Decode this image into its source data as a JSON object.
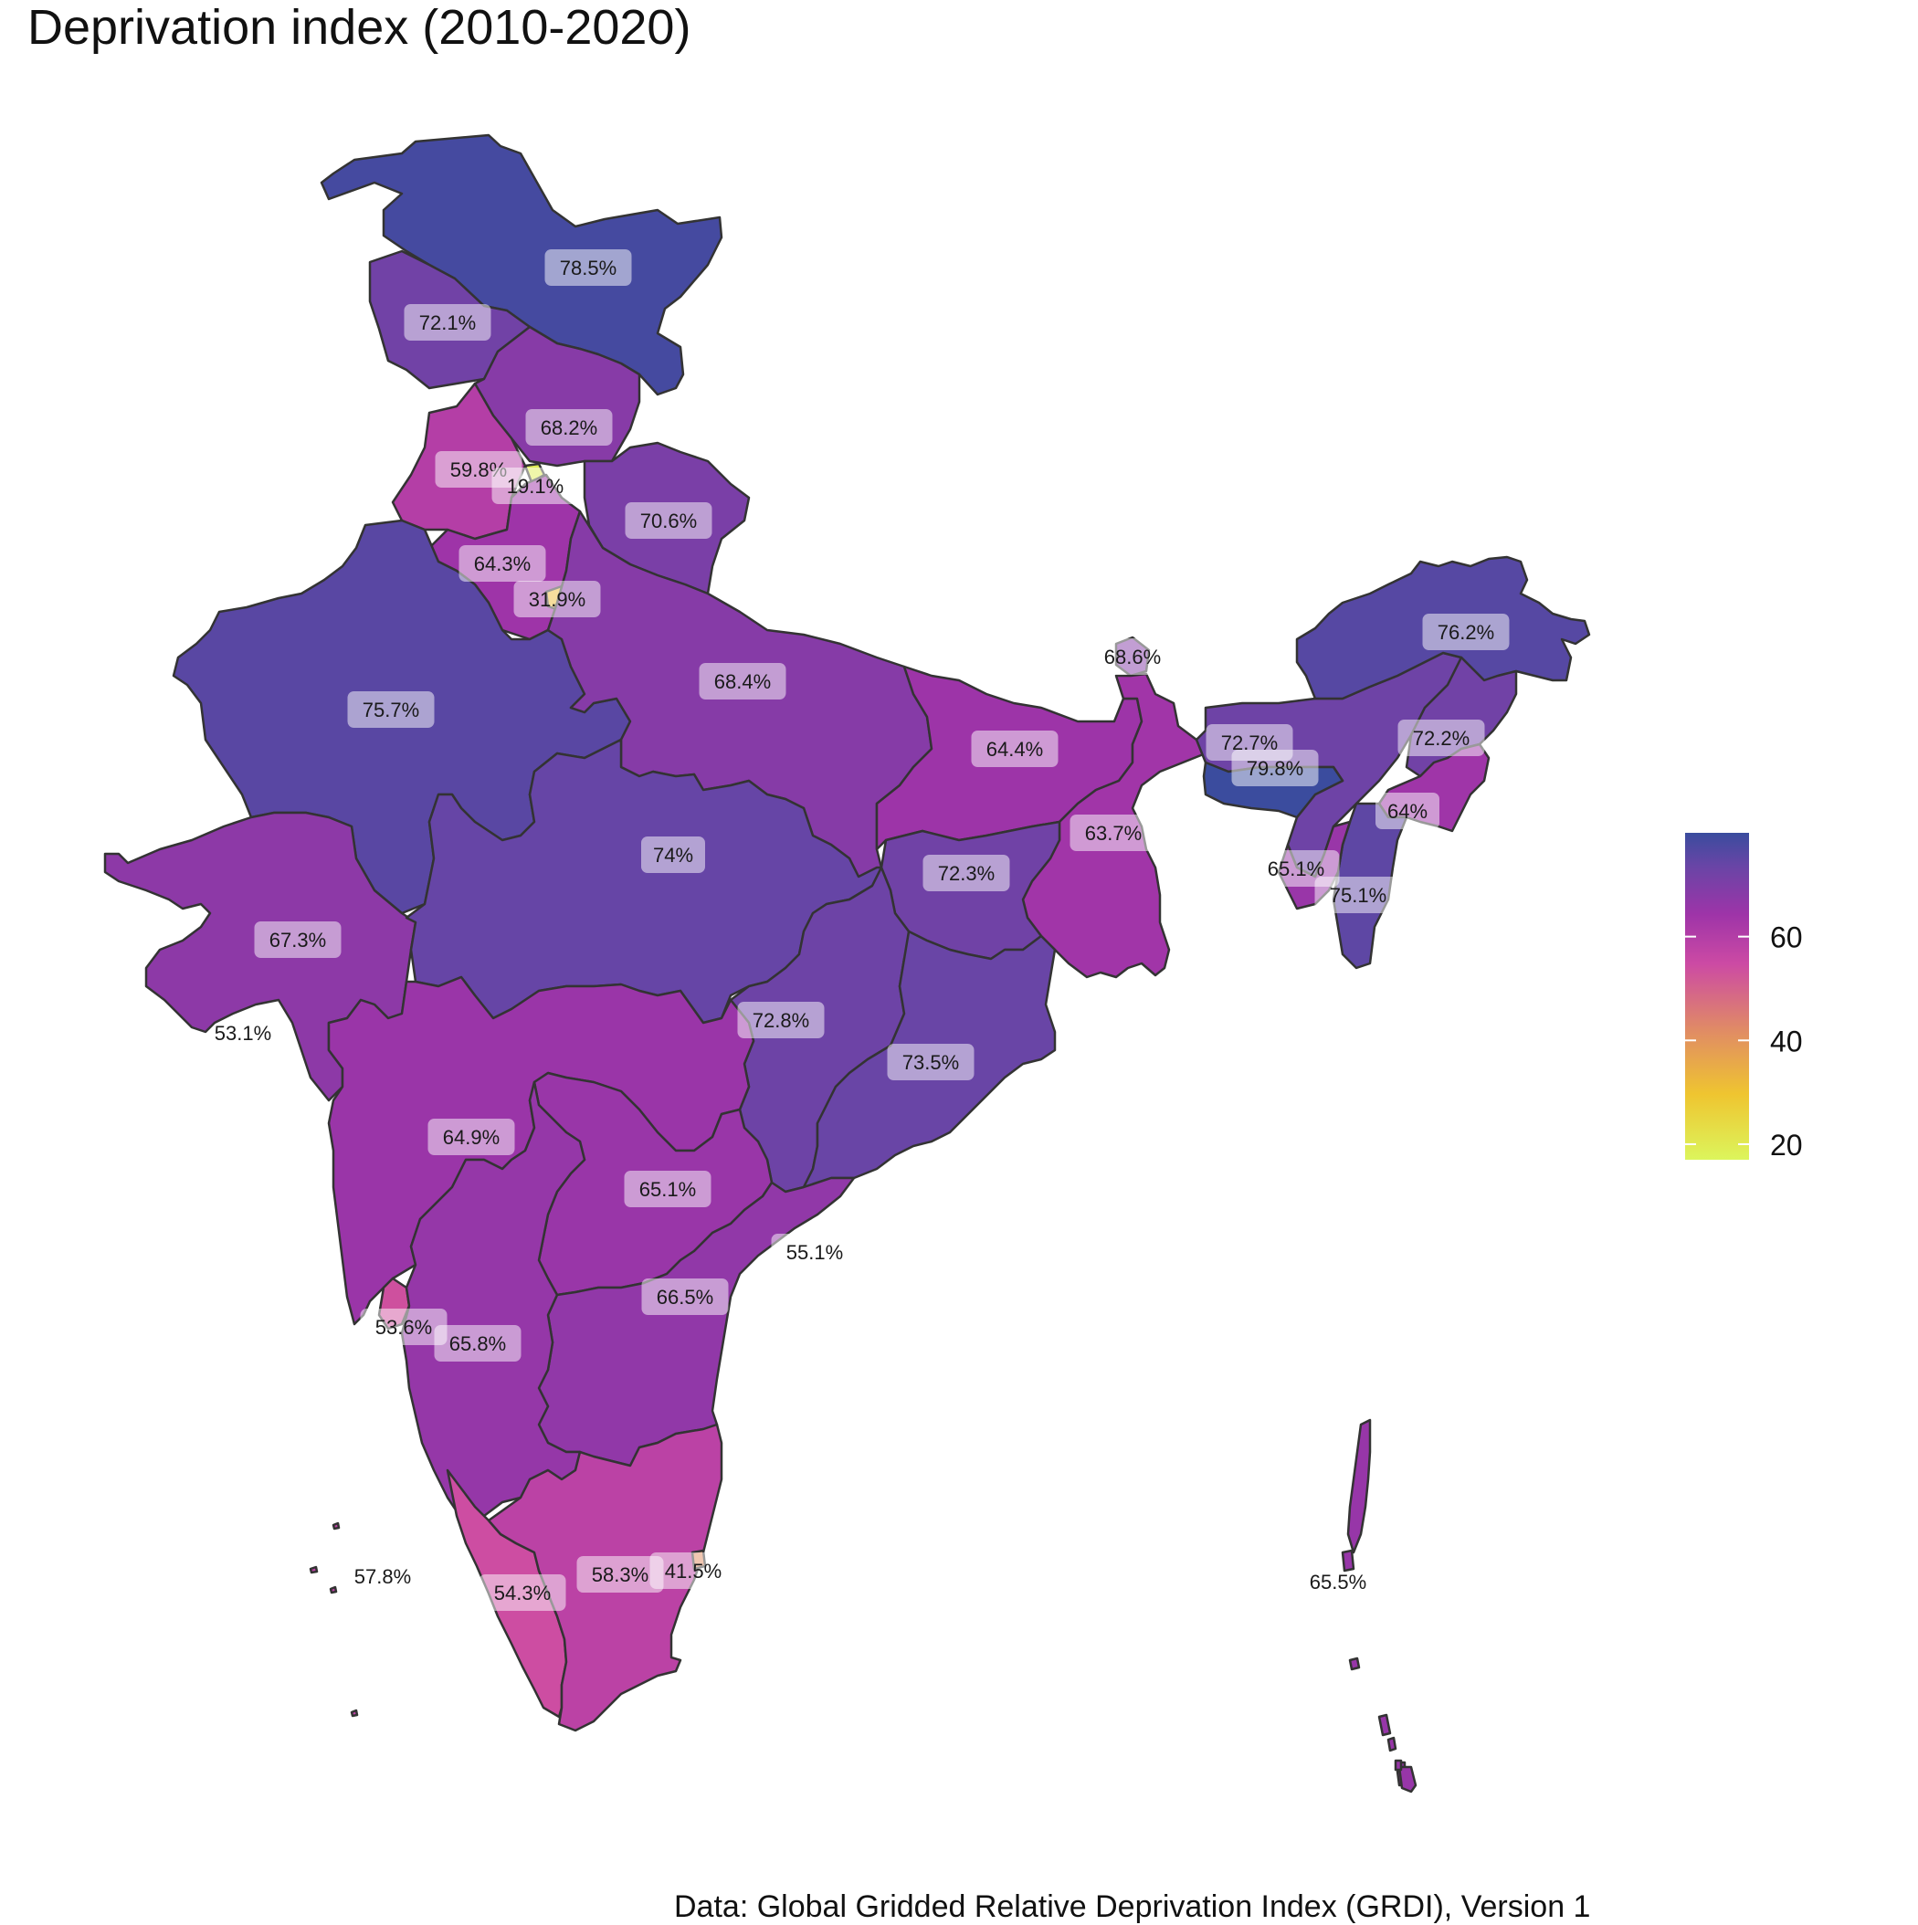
{
  "title": "Deprivation index (2010-2020)",
  "caption": "Data: Global Gridded Relative Deprivation Index (GRDI), Version 1",
  "legend": {
    "ticks": [
      "20",
      "40",
      "60"
    ],
    "tick_values": [
      20,
      40,
      60
    ],
    "range": [
      17,
      80
    ],
    "colors": [
      "#dcf55c",
      "#efc530",
      "#e08a66",
      "#cc4aa4",
      "#9e34a8",
      "#6845a6",
      "#3a4c9e"
    ]
  },
  "regions": [
    {
      "name": "Jammu & Kashmir",
      "label": "78.5%",
      "value": 78.5
    },
    {
      "name": "Himachal Pradesh",
      "label": "72.1%",
      "value": 72.1
    },
    {
      "name": "Uttarakhand",
      "label": "68.2%",
      "value": 68.2
    },
    {
      "name": "Punjab",
      "label": "59.8%",
      "value": 59.8
    },
    {
      "name": "Chandigarh",
      "label": "19.1%",
      "value": 19.1
    },
    {
      "name": "Uttarakhand-east",
      "label": "70.6%",
      "value": 70.6
    },
    {
      "name": "Haryana",
      "label": "64.3%",
      "value": 64.3
    },
    {
      "name": "Delhi",
      "label": "31.9%",
      "value": 31.9
    },
    {
      "name": "Rajasthan",
      "label": "75.7%",
      "value": 75.7
    },
    {
      "name": "Uttar Pradesh",
      "label": "68.4%",
      "value": 68.4
    },
    {
      "name": "Sikkim",
      "label": "68.6%",
      "value": 68.6
    },
    {
      "name": "Arunachal Pradesh",
      "label": "76.2%",
      "value": 76.2
    },
    {
      "name": "Bihar",
      "label": "64.4%",
      "value": 64.4
    },
    {
      "name": "Assam",
      "label": "72.7%",
      "value": 72.7
    },
    {
      "name": "Meghalaya",
      "label": "79.8%",
      "value": 79.8
    },
    {
      "name": "Nagaland",
      "label": "72.2%",
      "value": 72.2
    },
    {
      "name": "Manipur",
      "label": "64%",
      "value": 64
    },
    {
      "name": "Madhya Pradesh",
      "label": "74%",
      "value": 74
    },
    {
      "name": "Jharkhand",
      "label": "72.3%",
      "value": 72.3
    },
    {
      "name": "West Bengal",
      "label": "63.7%",
      "value": 63.7
    },
    {
      "name": "Tripura",
      "label": "65.1%",
      "value": 65.1
    },
    {
      "name": "Mizoram",
      "label": "75.1%",
      "value": 75.1
    },
    {
      "name": "Gujarat",
      "label": "67.3%",
      "value": 67.3
    },
    {
      "name": "Daman & Diu",
      "label": "53.1%",
      "value": 53.1
    },
    {
      "name": "Chhattisgarh",
      "label": "72.8%",
      "value": 72.8
    },
    {
      "name": "Odisha",
      "label": "73.5%",
      "value": 73.5
    },
    {
      "name": "Maharashtra",
      "label": "64.9%",
      "value": 64.9
    },
    {
      "name": "Telangana",
      "label": "65.1%",
      "value": 65.1
    },
    {
      "name": "Yanam",
      "label": "55.1%",
      "value": 55.1
    },
    {
      "name": "Andhra Pradesh",
      "label": "66.5%",
      "value": 66.5
    },
    {
      "name": "Goa",
      "label": "53.6%",
      "value": 53.6
    },
    {
      "name": "Karnataka",
      "label": "65.8%",
      "value": 65.8
    },
    {
      "name": "Lakshadweep",
      "label": "57.8%",
      "value": 57.8
    },
    {
      "name": "Kerala",
      "label": "54.3%",
      "value": 54.3
    },
    {
      "name": "Tamil Nadu",
      "label": "58.3%",
      "value": 58.3
    },
    {
      "name": "Puducherry",
      "label": "41.5%",
      "value": 41.5
    },
    {
      "name": "Andaman & Nicobar",
      "label": "65.5%",
      "value": 65.5
    }
  ]
}
